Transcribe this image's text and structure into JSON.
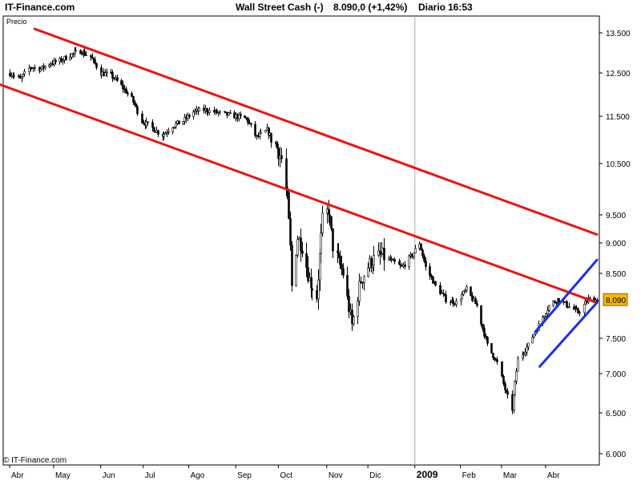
{
  "header": {
    "brand": "IT-Finance.com",
    "title": "Wall Street Cash (-)",
    "quote": "8.090,0 (+1,42%)",
    "period": "Diario",
    "time": "16:53"
  },
  "panel_label": "Precio",
  "watermark": "© IT-Finance.com",
  "colors": {
    "candles": "#000000",
    "channel_red": "#ee1111",
    "channel_blue": "#1a2ee8",
    "last_price_badge": "#f5b800",
    "year_separator": "#aaaaaa"
  },
  "chart_data": {
    "type": "candlestick",
    "instrument": "Wall Street Cash (-)",
    "ylim": [
      5900,
      13800
    ],
    "y_ticks": [
      {
        "value": 13500,
        "label": "13.500"
      },
      {
        "value": 12500,
        "label": "12.500"
      },
      {
        "value": 11500,
        "label": "11.500"
      },
      {
        "value": 10500,
        "label": "10.500"
      },
      {
        "value": 9500,
        "label": "9.500"
      },
      {
        "value": 9000,
        "label": "9.000"
      },
      {
        "value": 8500,
        "label": "8.500"
      },
      {
        "value": 7500,
        "label": "7.500"
      },
      {
        "value": 7000,
        "label": "7.000"
      },
      {
        "value": 6500,
        "label": "6.500"
      },
      {
        "value": 6000,
        "label": "6.000"
      }
    ],
    "x_range": [
      "2008-04-01",
      "2009-05-06"
    ],
    "x_ticks": [
      {
        "date": "2008-04-01",
        "label": "Abr"
      },
      {
        "date": "2008-05-01",
        "label": "May"
      },
      {
        "date": "2008-06-02",
        "label": "Jun"
      },
      {
        "date": "2008-07-01",
        "label": "Jul"
      },
      {
        "date": "2008-08-01",
        "label": "Ago"
      },
      {
        "date": "2008-09-02",
        "label": "Sep"
      },
      {
        "date": "2008-10-01",
        "label": "Oct"
      },
      {
        "date": "2008-11-03",
        "label": "Nov"
      },
      {
        "date": "2008-12-01",
        "label": "Dic"
      },
      {
        "date": "2009-01-02",
        "label": "2009",
        "bold": true
      },
      {
        "date": "2009-02-02",
        "label": "Feb"
      },
      {
        "date": "2009-03-02",
        "label": "Mar"
      },
      {
        "date": "2009-04-01",
        "label": "Abr"
      }
    ],
    "year_separator_date": "2009-01-02",
    "last_price": {
      "value": 8090,
      "label": "8.090"
    },
    "price_path": [
      [
        "2008-04-01",
        12500
      ],
      [
        "2008-04-08",
        12350
      ],
      [
        "2008-04-15",
        12650
      ],
      [
        "2008-04-22",
        12600
      ],
      [
        "2008-04-29",
        12750
      ],
      [
        "2008-05-05",
        12800
      ],
      [
        "2008-05-12",
        12950
      ],
      [
        "2008-05-19",
        13050
      ],
      [
        "2008-05-26",
        12900
      ],
      [
        "2008-06-02",
        12500
      ],
      [
        "2008-06-09",
        12450
      ],
      [
        "2008-06-16",
        12200
      ],
      [
        "2008-06-23",
        11900
      ],
      [
        "2008-06-30",
        11400
      ],
      [
        "2008-07-07",
        11250
      ],
      [
        "2008-07-14",
        11100
      ],
      [
        "2008-07-21",
        11300
      ],
      [
        "2008-07-28",
        11400
      ],
      [
        "2008-08-04",
        11600
      ],
      [
        "2008-08-11",
        11650
      ],
      [
        "2008-08-18",
        11600
      ],
      [
        "2008-08-25",
        11550
      ],
      [
        "2008-09-02",
        11500
      ],
      [
        "2008-09-09",
        11450
      ],
      [
        "2008-09-16",
        11050
      ],
      [
        "2008-09-23",
        11200
      ],
      [
        "2008-09-29",
        10900
      ],
      [
        "2008-10-03",
        10600
      ],
      [
        "2008-10-07",
        9800
      ],
      [
        "2008-10-09",
        8900
      ],
      [
        "2008-10-10",
        8300
      ],
      [
        "2008-10-14",
        9100
      ],
      [
        "2008-10-17",
        8950
      ],
      [
        "2008-10-22",
        8400
      ],
      [
        "2008-10-27",
        8150
      ],
      [
        "2008-10-31",
        9400
      ],
      [
        "2008-11-04",
        9600
      ],
      [
        "2008-11-07",
        8950
      ],
      [
        "2008-11-14",
        8500
      ],
      [
        "2008-11-20",
        7700
      ],
      [
        "2008-11-26",
        8400
      ],
      [
        "2008-12-03",
        8700
      ],
      [
        "2008-12-10",
        8800
      ],
      [
        "2008-12-17",
        8700
      ],
      [
        "2008-12-24",
        8600
      ],
      [
        "2008-12-31",
        8800
      ],
      [
        "2009-01-05",
        9000
      ],
      [
        "2009-01-09",
        8600
      ],
      [
        "2009-01-16",
        8300
      ],
      [
        "2009-01-23",
        8100
      ],
      [
        "2009-01-30",
        8050
      ],
      [
        "2009-02-06",
        8250
      ],
      [
        "2009-02-13",
        8000
      ],
      [
        "2009-02-20",
        7400
      ],
      [
        "2009-02-27",
        7150
      ],
      [
        "2009-03-04",
        6800
      ],
      [
        "2009-03-09",
        6550
      ],
      [
        "2009-03-13",
        7200
      ],
      [
        "2009-03-20",
        7400
      ],
      [
        "2009-03-27",
        7700
      ],
      [
        "2009-04-03",
        8000
      ],
      [
        "2009-04-09",
        8100
      ],
      [
        "2009-04-16",
        8000
      ],
      [
        "2009-04-23",
        7900
      ],
      [
        "2009-04-30",
        8100
      ],
      [
        "2009-05-05",
        8090
      ]
    ],
    "lines": [
      {
        "name": "red-channel-upper",
        "color": "#ee1111",
        "from": [
          "2008-04-18",
          13600
        ],
        "to": [
          "2009-05-06",
          9150
        ]
      },
      {
        "name": "red-channel-lower",
        "color": "#ee1111",
        "from": [
          "2008-03-20",
          12300
        ],
        "to": [
          "2009-05-06",
          8050
        ]
      },
      {
        "name": "blue-channel-upper",
        "color": "#1a2ee8",
        "from": [
          "2009-03-25",
          7600
        ],
        "to": [
          "2009-05-06",
          8720
        ]
      },
      {
        "name": "blue-channel-lower",
        "color": "#1a2ee8",
        "from": [
          "2009-03-28",
          7100
        ],
        "to": [
          "2009-05-06",
          8050
        ]
      }
    ]
  }
}
